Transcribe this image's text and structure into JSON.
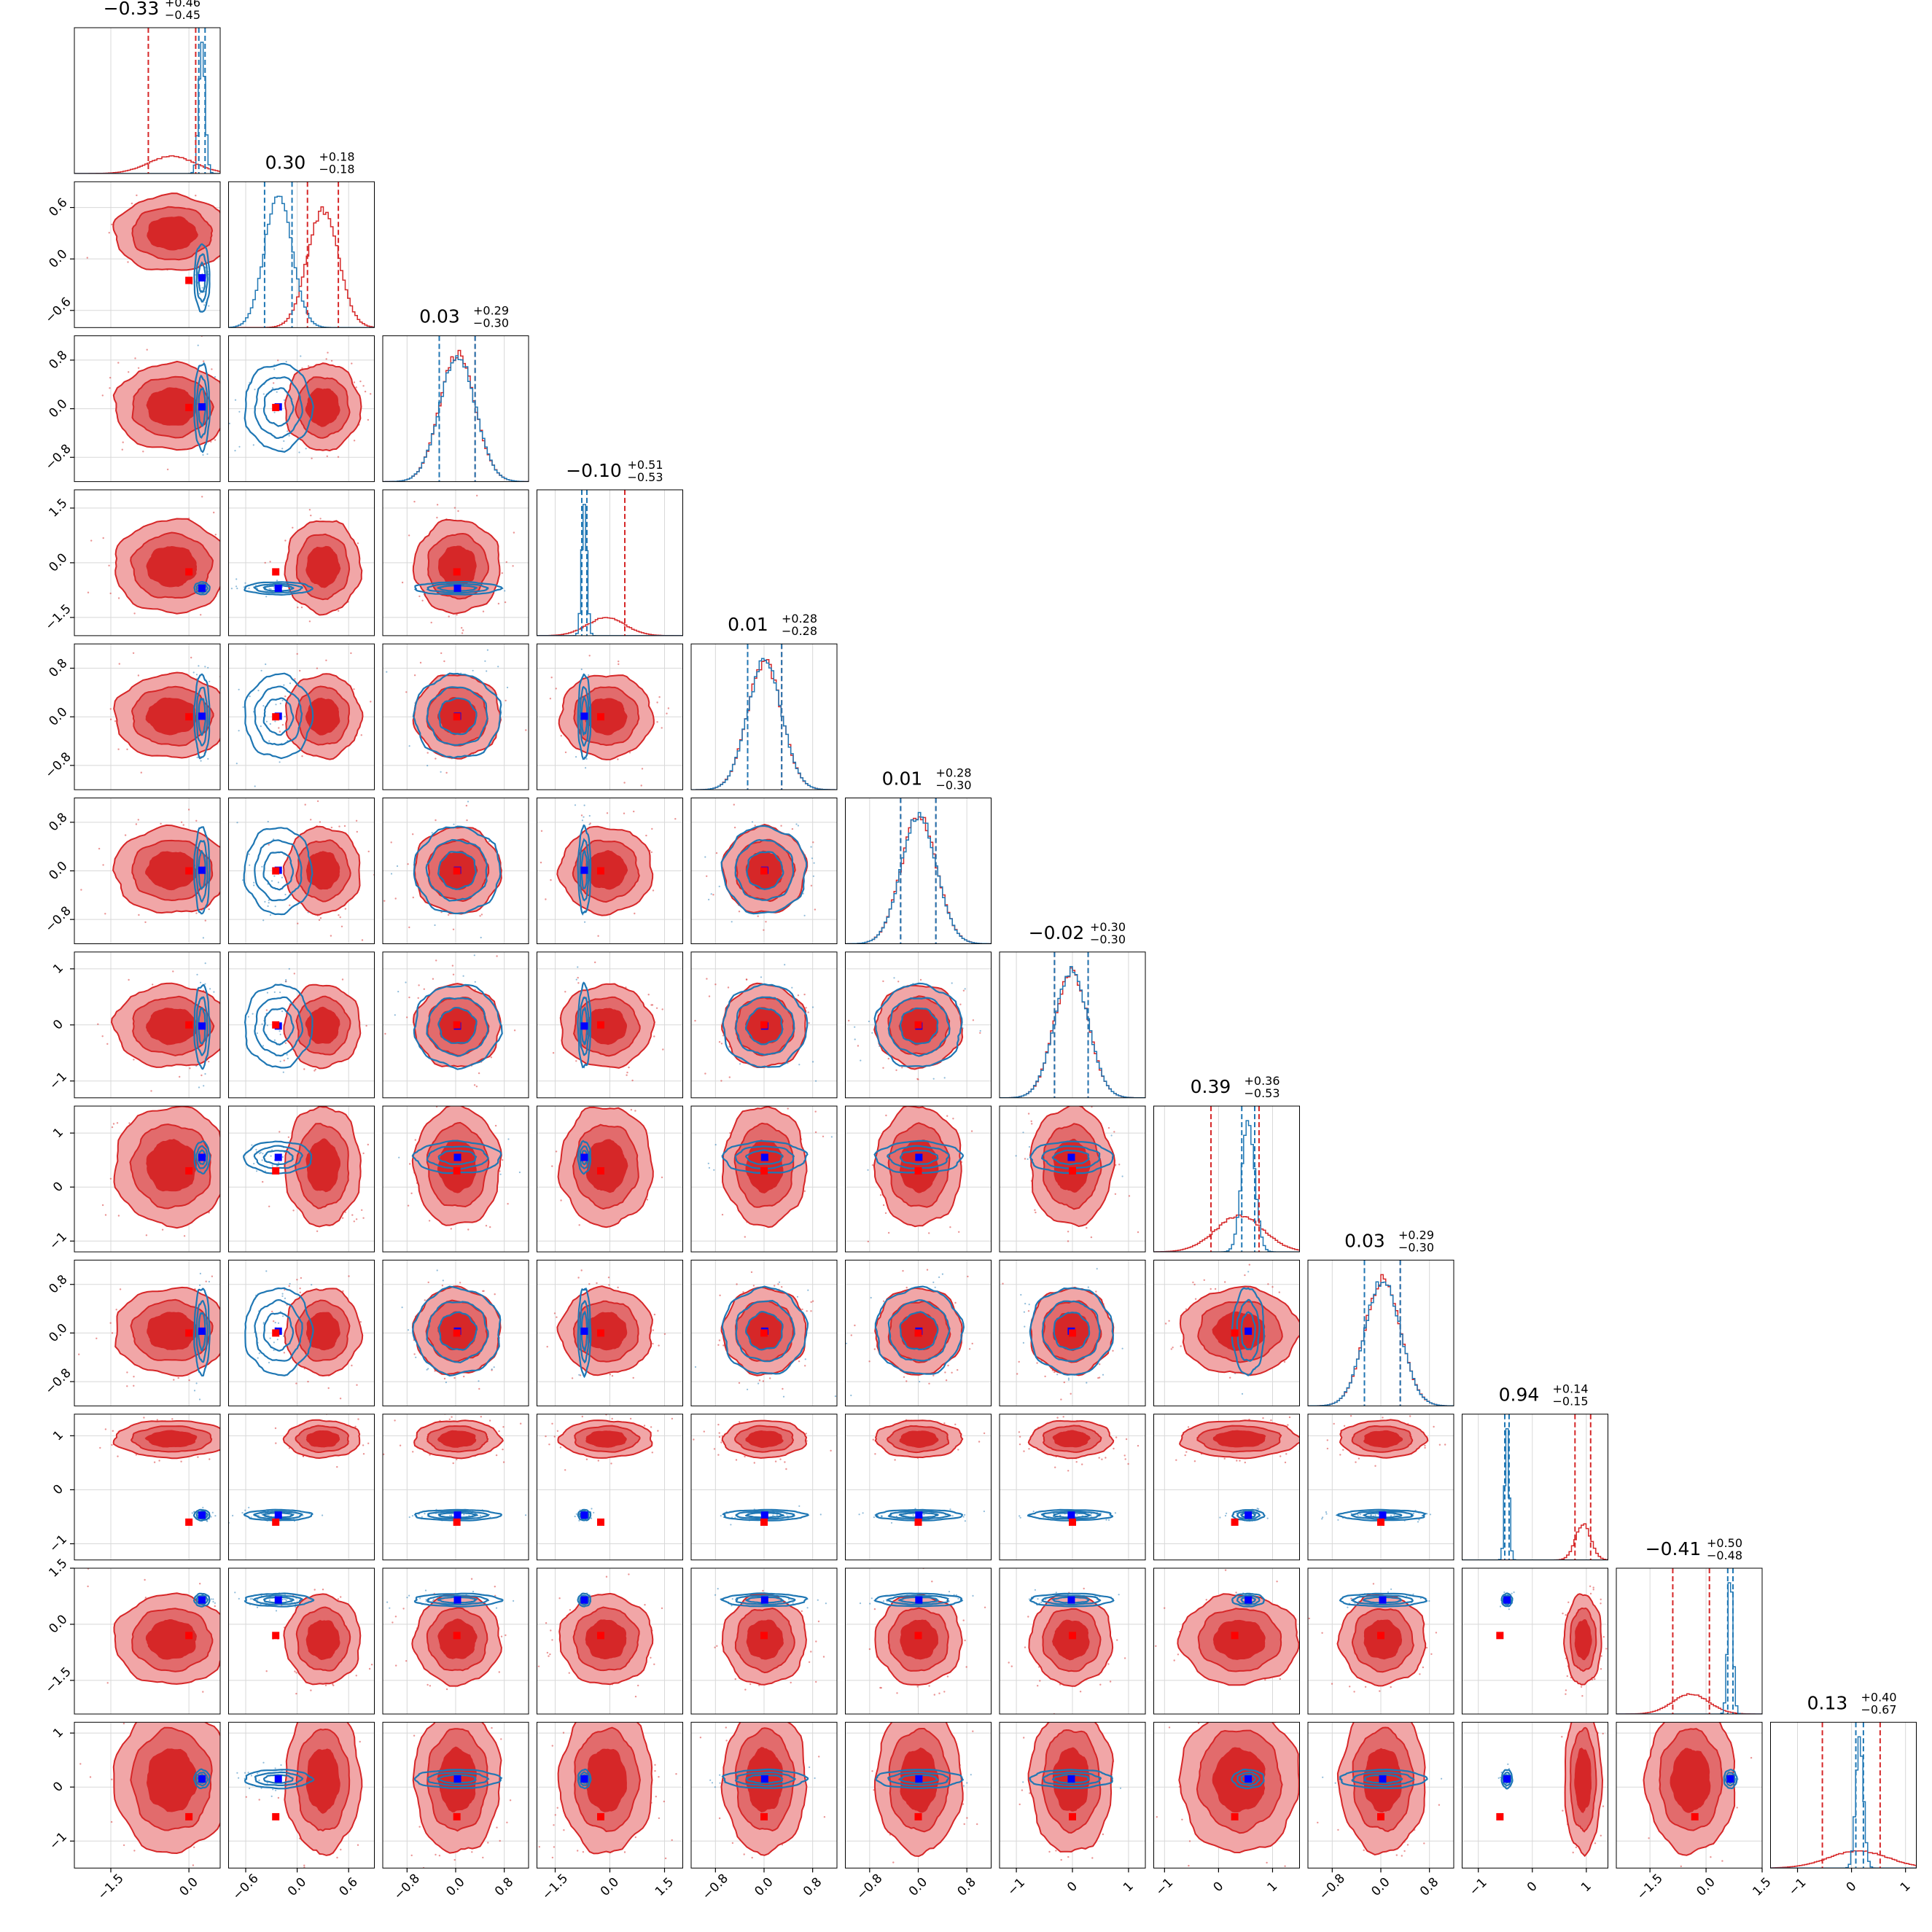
{
  "chart_data": {
    "type": "corner",
    "n_params": 12,
    "series_colors": {
      "red": "#d62728",
      "blue": "#1f77b4",
      "truth": "#0000ff",
      "truth_red": "#ff0000"
    },
    "grid": true,
    "axis_ranges": [
      [
        -2.2,
        0.6
      ],
      [
        -0.8,
        0.9
      ],
      [
        -1.2,
        1.2
      ],
      [
        -2.0,
        2.0
      ],
      [
        -1.2,
        1.2
      ],
      [
        -1.2,
        1.2
      ],
      [
        -1.3,
        1.3
      ],
      [
        -1.2,
        1.5
      ],
      [
        -1.2,
        1.2
      ],
      [
        -1.3,
        1.4
      ],
      [
        -2.4,
        1.5
      ],
      [
        -1.5,
        1.2
      ]
    ],
    "ticks": [
      {
        "values": [
          -1.5,
          0.0
        ],
        "labels": [
          "−1.5",
          "0.0"
        ]
      },
      {
        "values": [
          -0.6,
          0.0,
          0.6
        ],
        "labels": [
          "−0.6",
          "0.0",
          "0.6"
        ]
      },
      {
        "values": [
          -0.8,
          0.0,
          0.8
        ],
        "labels": [
          "−0.8",
          "0.0",
          "0.8"
        ]
      },
      {
        "values": [
          -1.5,
          0.0,
          1.5
        ],
        "labels": [
          "−1.5",
          "0.0",
          "1.5"
        ]
      },
      {
        "values": [
          -0.8,
          0.0,
          0.8
        ],
        "labels": [
          "−0.8",
          "0.0",
          "0.8"
        ]
      },
      {
        "values": [
          -0.8,
          0.0,
          0.8
        ],
        "labels": [
          "−0.8",
          "0.0",
          "0.8"
        ]
      },
      {
        "values": [
          -1,
          0,
          1
        ],
        "labels": [
          "−1",
          "0",
          "1"
        ]
      },
      {
        "values": [
          -1,
          0,
          1
        ],
        "labels": [
          "−1",
          "0",
          "1"
        ]
      },
      {
        "values": [
          -0.8,
          0.0,
          0.8
        ],
        "labels": [
          "−0.8",
          "0.0",
          "0.8"
        ]
      },
      {
        "values": [
          -1,
          0,
          1
        ],
        "labels": [
          "−1",
          "0",
          "1"
        ]
      },
      {
        "values": [
          -1.5,
          0.0,
          1.5
        ],
        "labels": [
          "−1.5",
          "0.0",
          "1.5"
        ]
      },
      {
        "values": [
          -1,
          0,
          1
        ],
        "labels": [
          "−1",
          "0",
          "1"
        ]
      }
    ],
    "titles": [
      {
        "main": "−0.33",
        "plus": "+0.46",
        "minus": "−0.45"
      },
      {
        "main": "0.30",
        "plus": "+0.18",
        "minus": "−0.18"
      },
      {
        "main": "0.03",
        "plus": "+0.29",
        "minus": "−0.30"
      },
      {
        "main": "−0.10",
        "plus": "+0.51",
        "minus": "−0.53"
      },
      {
        "main": "0.01",
        "plus": "+0.28",
        "minus": "−0.28"
      },
      {
        "main": "0.01",
        "plus": "+0.28",
        "minus": "−0.30"
      },
      {
        "main": "−0.02",
        "plus": "+0.30",
        "minus": "−0.30"
      },
      {
        "main": "0.39",
        "plus": "+0.36",
        "minus": "−0.53"
      },
      {
        "main": "0.03",
        "plus": "+0.29",
        "minus": "−0.30"
      },
      {
        "main": "0.94",
        "plus": "+0.14",
        "minus": "−0.15"
      },
      {
        "main": "−0.41",
        "plus": "+0.50",
        "minus": "−0.48"
      },
      {
        "main": "0.13",
        "plus": "+0.40",
        "minus": "−0.67"
      }
    ],
    "red_posterior": {
      "median": [
        -0.33,
        0.3,
        0.03,
        -0.1,
        0.01,
        0.01,
        -0.02,
        0.39,
        0.03,
        0.94,
        -0.41,
        0.13
      ],
      "sigma": [
        0.45,
        0.18,
        0.29,
        0.52,
        0.28,
        0.29,
        0.3,
        0.45,
        0.29,
        0.14,
        0.49,
        0.55
      ],
      "quantiles": [
        [
          -0.78,
          0.13
        ],
        [
          0.12,
          0.48
        ],
        [
          -0.27,
          0.32
        ],
        [
          -0.63,
          0.41
        ],
        [
          -0.27,
          0.29
        ],
        [
          -0.29,
          0.29
        ],
        [
          -0.32,
          0.28
        ],
        [
          -0.14,
          0.75
        ],
        [
          -0.27,
          0.32
        ],
        [
          0.79,
          1.08
        ],
        [
          -0.89,
          0.09
        ],
        [
          -0.54,
          0.53
        ]
      ]
    },
    "blue_posterior": {
      "median": [
        0.25,
        -0.22,
        0.03,
        -0.7,
        0.01,
        0.01,
        -0.02,
        0.55,
        0.03,
        -0.47,
        0.65,
        0.15
      ],
      "sigma": [
        0.06,
        0.16,
        0.29,
        0.07,
        0.28,
        0.29,
        0.3,
        0.12,
        0.29,
        0.04,
        0.07,
        0.07
      ],
      "quantiles": [
        [
          0.19,
          0.31
        ],
        [
          -0.38,
          -0.06
        ],
        [
          -0.27,
          0.32
        ],
        [
          -0.77,
          -0.63
        ],
        [
          -0.27,
          0.29
        ],
        [
          -0.29,
          0.29
        ],
        [
          -0.32,
          0.28
        ],
        [
          0.43,
          0.67
        ],
        [
          -0.27,
          0.32
        ],
        [
          -0.51,
          -0.43
        ],
        [
          0.58,
          0.72
        ],
        [
          0.08,
          0.22
        ]
      ]
    },
    "truth_blue": [
      0.25,
      -0.22,
      0.03,
      -0.7,
      0.01,
      0.01,
      -0.02,
      0.55,
      0.03,
      -0.47,
      0.65,
      0.15
    ],
    "truth_red": [
      0.0,
      -0.25,
      0.02,
      -0.25,
      0.0,
      0.0,
      0.0,
      0.3,
      0.0,
      -0.6,
      -0.3,
      -0.55
    ]
  }
}
